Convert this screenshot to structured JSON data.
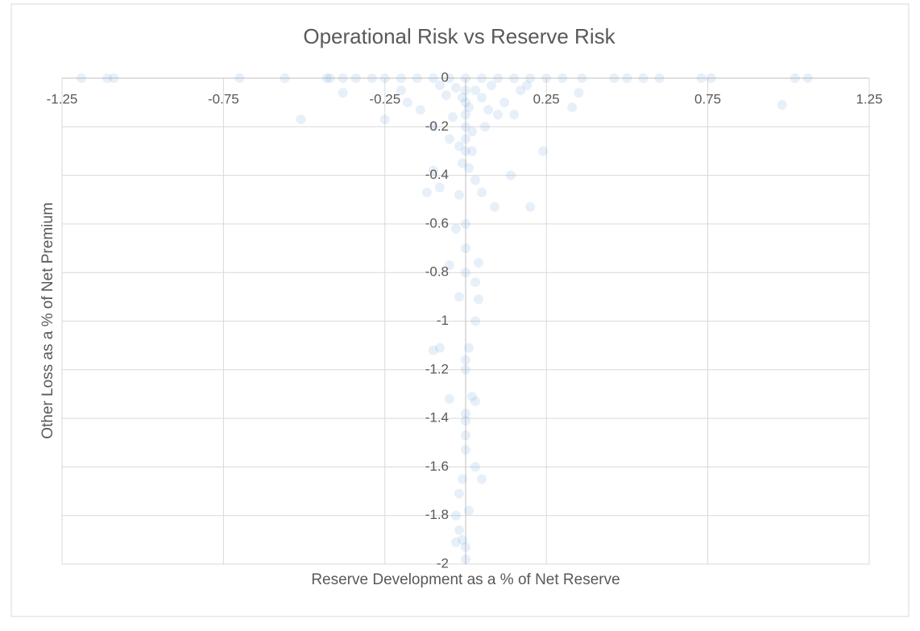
{
  "chart_data": {
    "type": "scatter",
    "title": "Operational Risk vs Reserve Risk",
    "x_label": "Reserve Development as a % of Net Reserve",
    "y_label": "Other Loss as a % of Net Premium",
    "xlim": [
      -1.25,
      1.25
    ],
    "xticks": [
      -1.25,
      -0.75,
      -0.25,
      0.25,
      0.75,
      1.25
    ],
    "ylim": [
      -2,
      0
    ],
    "yticks": [
      0,
      -0.2,
      -0.4,
      -0.6,
      -0.8,
      -1,
      -1.2,
      -1.4,
      -1.6,
      -1.8,
      -2
    ],
    "grid": true,
    "series": [
      {
        "color": "#5b9bd5",
        "x": [
          -1.19,
          -1.11,
          -1.09,
          -0.7,
          -0.56,
          -0.43,
          -0.42,
          -0.38,
          -0.34,
          -0.29,
          -0.25,
          -0.2,
          -0.15,
          -0.1,
          -0.05,
          0,
          0.05,
          0.1,
          0.15,
          0.2,
          0.25,
          0.3,
          0.36,
          0.46,
          0.5,
          0.55,
          0.6,
          0.73,
          0.76,
          1.02,
          1.06,
          -0.51,
          -0.25,
          -0.38,
          0.35,
          0.33,
          0.98,
          0.19,
          0.24,
          0.14,
          0.2,
          0.09,
          0.02,
          -0.05,
          -0.1,
          -0.08,
          -0.12,
          0.05,
          0.03,
          -0.02,
          0,
          -0.03,
          0,
          0.04,
          -0.05,
          0,
          0.03,
          -0.02,
          0.04,
          0.03,
          -0.08,
          -0.1,
          0.01,
          0,
          0,
          -0.05,
          0.02,
          0.03,
          0,
          0,
          0,
          0,
          0.03,
          0.05,
          -0.01,
          -0.02,
          -0.03,
          0.01,
          -0.02,
          -0.01,
          0,
          -0.03,
          0,
          0,
          0,
          0,
          0,
          0,
          0.01,
          -0.01,
          0.03,
          -0.03,
          0.05,
          -0.06,
          0.08,
          -0.08,
          0.12,
          -0.14,
          0.1,
          -0.1,
          0,
          -0.01,
          0.01,
          0.07,
          -0.04,
          0.02,
          -0.02,
          0.06,
          0.15,
          -0.18,
          0.17,
          -0.2
        ],
        "y": [
          0,
          0,
          0,
          0,
          0,
          0,
          0,
          0,
          0,
          0,
          0,
          0,
          0,
          0,
          0,
          0,
          0,
          0,
          0,
          0,
          0,
          0,
          0,
          0,
          0,
          0,
          0,
          0,
          0,
          0,
          0,
          -0.17,
          -0.17,
          -0.06,
          -0.06,
          -0.12,
          -0.11,
          -0.03,
          -0.3,
          -0.4,
          -0.53,
          -0.53,
          -0.3,
          -0.25,
          -0.38,
          -0.45,
          -0.47,
          -0.47,
          -0.42,
          -0.48,
          -0.6,
          -0.62,
          -0.7,
          -0.76,
          -0.77,
          -0.8,
          -0.84,
          -0.9,
          -0.91,
          -1,
          -1.11,
          -1.12,
          -1.11,
          -1.16,
          -1.2,
          -1.32,
          -1.31,
          -1.33,
          -1.38,
          -1.41,
          -1.47,
          -1.53,
          -1.6,
          -1.65,
          -1.65,
          -1.71,
          -1.8,
          -1.78,
          -1.86,
          -1.9,
          -1.93,
          -1.91,
          -1.98,
          -0.05,
          -0.1,
          -0.15,
          -0.2,
          -0.25,
          -0.12,
          -0.08,
          -0.05,
          -0.04,
          -0.08,
          -0.07,
          -0.03,
          -0.03,
          -0.1,
          -0.13,
          -0.15,
          -0.2,
          -0.3,
          -0.35,
          -0.37,
          -0.13,
          -0.16,
          -0.22,
          -0.28,
          -0.2,
          -0.15,
          -0.1,
          -0.05,
          -0.05
        ]
      }
    ]
  }
}
